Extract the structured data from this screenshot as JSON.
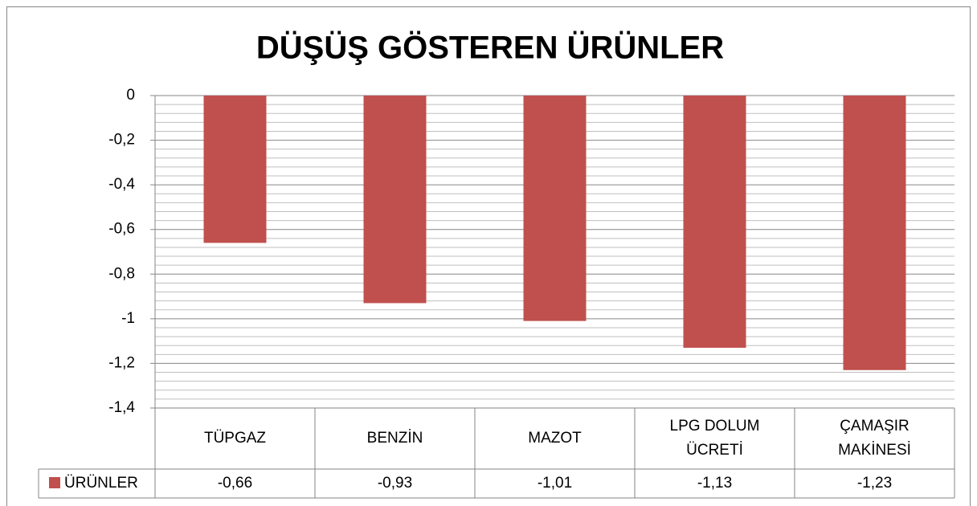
{
  "chart_data": {
    "type": "bar",
    "title": "DÜŞÜŞ GÖSTEREN ÜRÜNLER",
    "categories": [
      "TÜPGAZ",
      "BENZİN",
      "MAZOT",
      "LPG DOLUM ÜCRETİ",
      "ÇAMAŞIR MAKİNESİ"
    ],
    "series": [
      {
        "name": "ÜRÜNLER",
        "color": "#c0504d",
        "values": [
          -0.66,
          -0.93,
          -1.01,
          -1.13,
          -1.23
        ],
        "value_labels": [
          "-0,66",
          "-0,93",
          "-1,01",
          "-1,13",
          "-1,23"
        ]
      }
    ],
    "ylim": [
      -1.4,
      0
    ],
    "yticks": [
      0,
      {
        "value": -0.2,
        "label": "-0,2"
      },
      {
        "value": -0.4,
        "label": "-0,4"
      },
      {
        "value": -0.6,
        "label": "-0,6"
      },
      {
        "value": -0.8,
        "label": "-0,8"
      },
      -1,
      {
        "value": -1.2,
        "label": "-1,2"
      },
      {
        "value": -1.4,
        "label": "-1,4"
      }
    ],
    "grid": true,
    "minor_grid": true,
    "data_table": true
  }
}
